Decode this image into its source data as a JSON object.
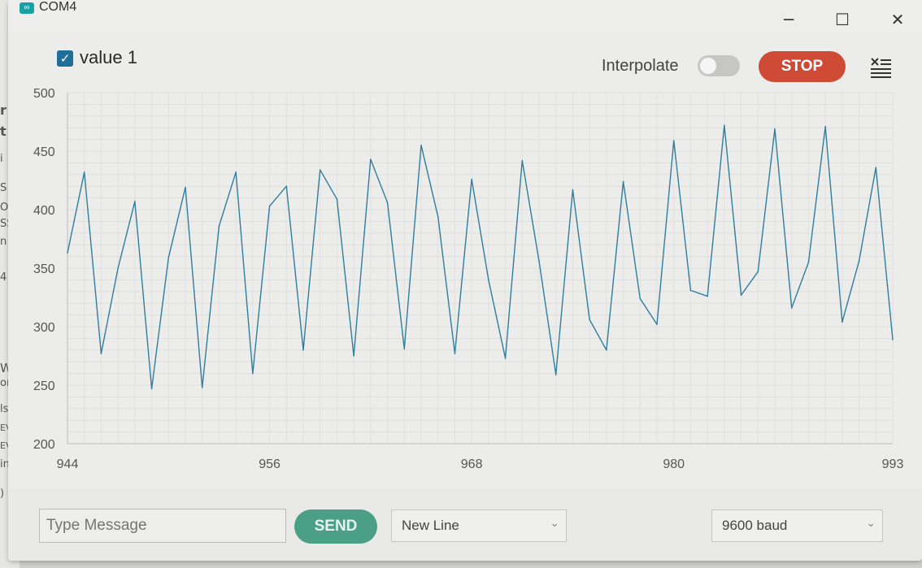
{
  "window": {
    "title": "COM4",
    "minimize_glyph": "─",
    "maximize_glyph": "☐",
    "close_glyph": "✕"
  },
  "toolbar": {
    "series_checked": true,
    "series_label": "value 1",
    "interpolate_label": "Interpolate",
    "interpolate_on": false,
    "stop_label": "STOP",
    "clear_icon": "clear-output-icon"
  },
  "background_fragments": [
    "r",
    "t",
    "i",
    "S",
    "O",
    "SS",
    "n",
    "4",
    "W",
    "on",
    "ls",
    "EV",
    "EV",
    "in",
    ")"
  ],
  "chart_data": {
    "type": "line",
    "title": "",
    "xlabel": "",
    "ylabel": "",
    "ylim": [
      200,
      500
    ],
    "xlim": [
      944,
      993
    ],
    "y_ticks": [
      500,
      450,
      400,
      350,
      300,
      250,
      200
    ],
    "x_ticks": [
      944,
      956,
      968,
      980,
      993
    ],
    "grid": true,
    "legend": "top-left",
    "series": [
      {
        "name": "value 1",
        "color": "#2f7e9c",
        "x": [
          944,
          945,
          946,
          947,
          948,
          949,
          950,
          951,
          952,
          953,
          954,
          955,
          956,
          957,
          958,
          959,
          960,
          961,
          962,
          963,
          964,
          965,
          966,
          967,
          968,
          969,
          970,
          971,
          972,
          973,
          974,
          975,
          976,
          977,
          978,
          979,
          980,
          981,
          982,
          983,
          984,
          985,
          986,
          987,
          988,
          989,
          990,
          991,
          992,
          993
        ],
        "values": [
          363,
          432,
          277,
          350,
          407,
          247,
          359,
          419,
          248,
          386,
          432,
          260,
          403,
          420,
          280,
          434,
          409,
          275,
          443,
          406,
          281,
          455,
          394,
          277,
          426,
          340,
          273,
          442,
          356,
          259,
          417,
          306,
          280,
          424,
          324,
          302,
          459,
          331,
          326,
          472,
          327,
          347,
          469,
          316,
          355,
          471,
          304,
          356,
          436,
          289
        ]
      }
    ]
  },
  "bottom_bar": {
    "message_placeholder": "Type Message",
    "send_label": "SEND",
    "line_ending": "New Line",
    "baud_rate": "9600 baud"
  }
}
